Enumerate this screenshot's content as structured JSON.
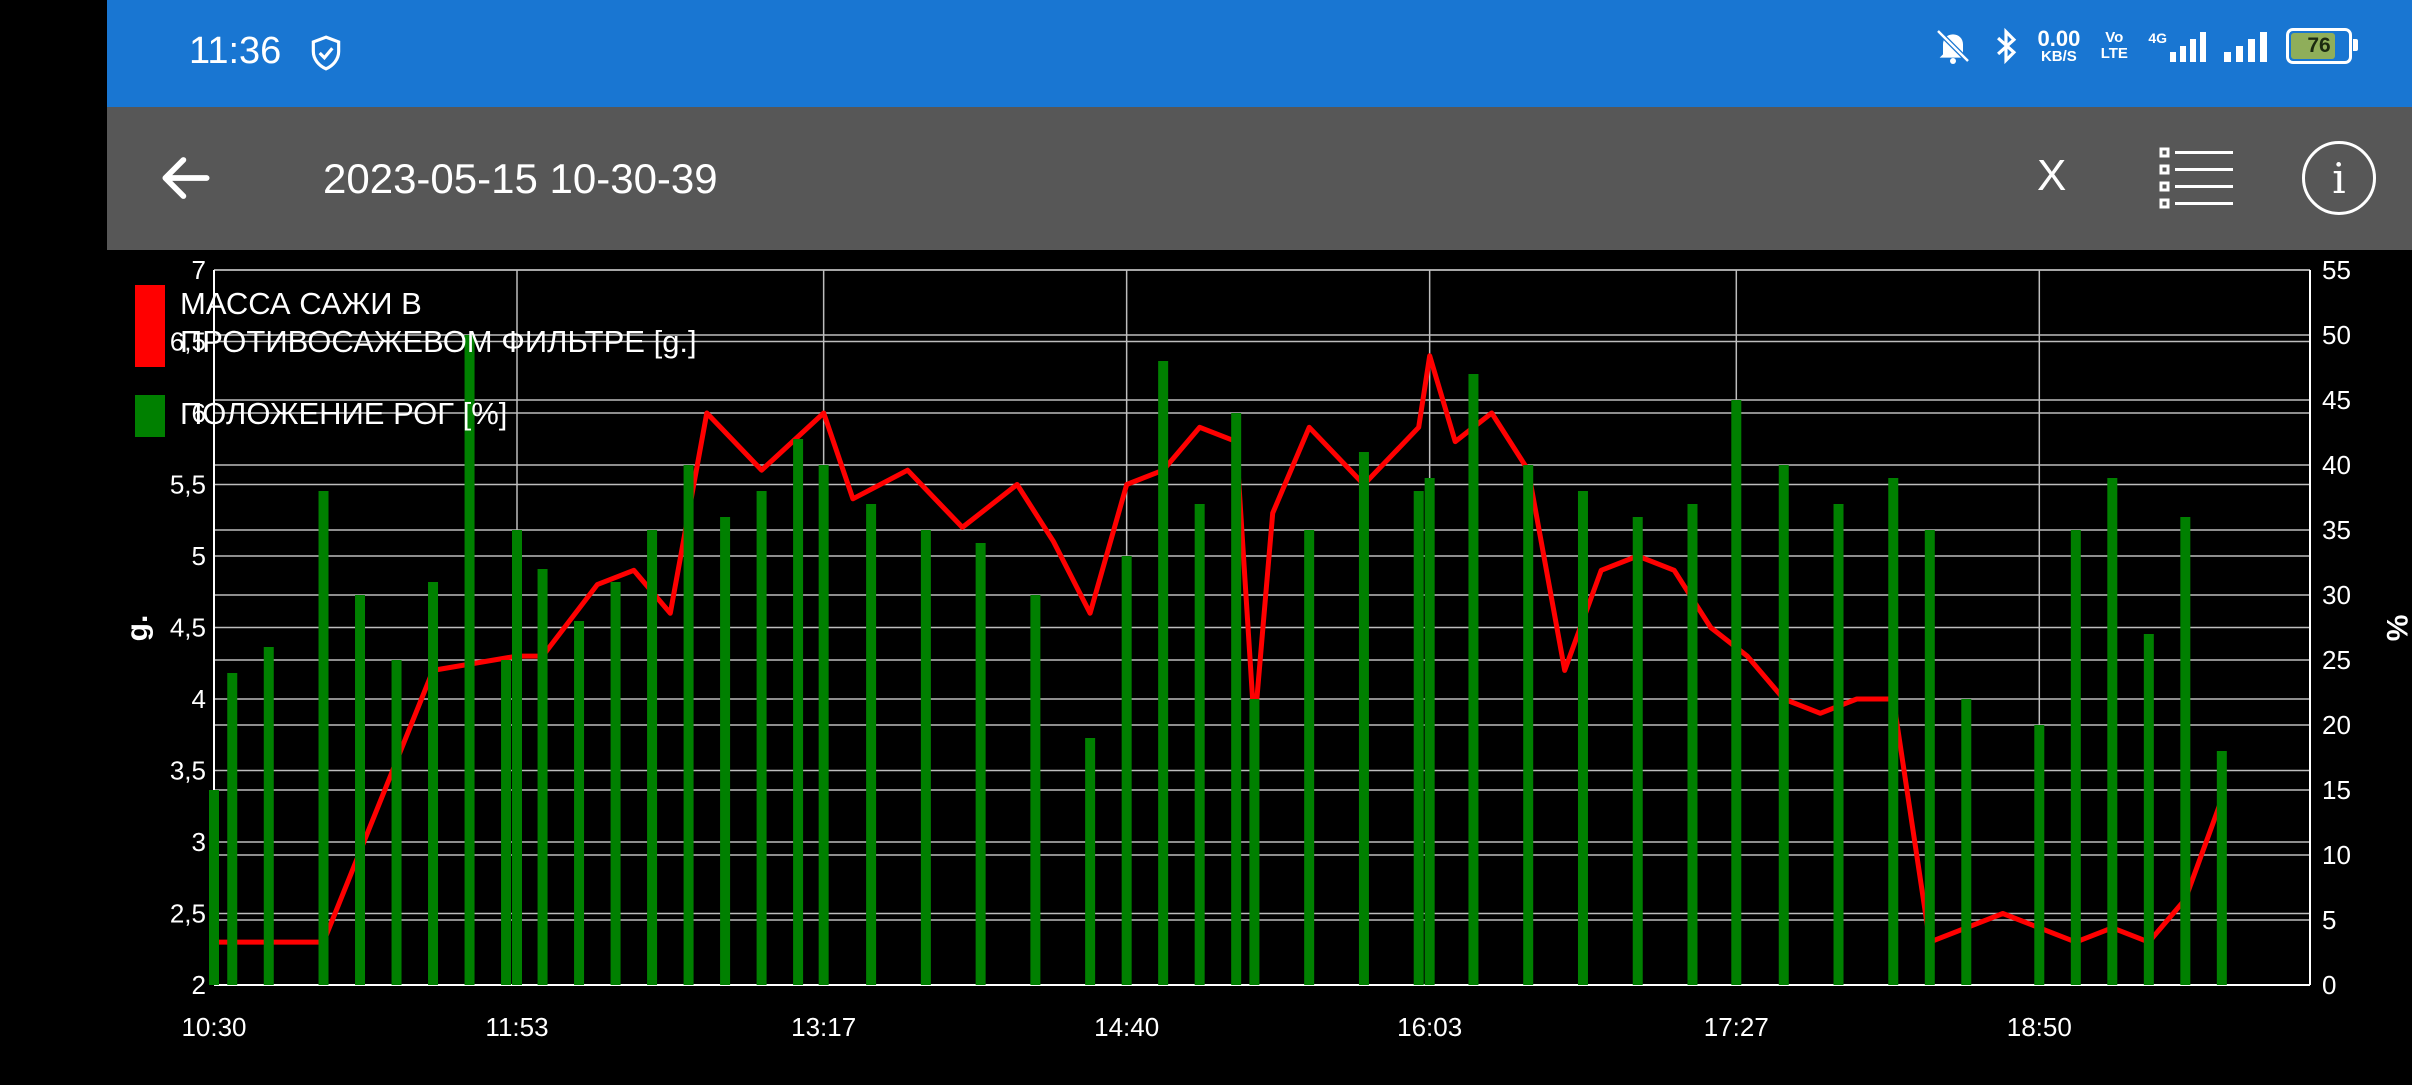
{
  "status": {
    "time": "11:36",
    "speed_value": "0.00",
    "speed_unit": "KB/S",
    "volte": "Vo LTE",
    "network": "4G",
    "battery": "76"
  },
  "toolbar": {
    "title": "2023-05-15 10-30-39",
    "close_label": "X"
  },
  "chart_data": {
    "type": "line",
    "xlabel": "",
    "x_ticks": [
      "10:30",
      "11:53",
      "13:17",
      "14:40",
      "16:03",
      "17:27",
      "18:50"
    ],
    "y_left_label": "g.",
    "y_left_range": [
      2,
      7
    ],
    "y_left_ticks": [
      "2",
      "2,5",
      "3",
      "3,5",
      "4",
      "4,5",
      "5",
      "5,5",
      "6",
      "6,5",
      "7"
    ],
    "y_right_label": "%",
    "y_right_range": [
      0,
      55
    ],
    "y_right_ticks": [
      "0",
      "5",
      "10",
      "15",
      "20",
      "25",
      "30",
      "35",
      "40",
      "45",
      "50",
      "55"
    ],
    "grid": true,
    "legend_position": "top-left",
    "series": [
      {
        "name": "МАССА САЖИ В ПРОТИВОСАЖЕВОМ ФИЛЬТРЕ [g.]",
        "color": "#ff0000",
        "axis": "left",
        "x": [
          "10:30",
          "10:40",
          "11:00",
          "11:30",
          "11:53",
          "12:00",
          "12:15",
          "12:25",
          "12:35",
          "12:45",
          "13:00",
          "13:17",
          "13:25",
          "13:40",
          "13:55",
          "14:10",
          "14:20",
          "14:30",
          "14:40",
          "14:50",
          "15:00",
          "15:10",
          "15:15",
          "15:20",
          "15:30",
          "15:45",
          "16:00",
          "16:03",
          "16:10",
          "16:20",
          "16:30",
          "16:40",
          "16:50",
          "17:00",
          "17:10",
          "17:20",
          "17:30",
          "17:40",
          "17:50",
          "18:00",
          "18:10",
          "18:20",
          "18:30",
          "18:40",
          "18:50",
          "19:00",
          "19:10",
          "19:20",
          "19:30",
          "19:40"
        ],
        "values": [
          2.3,
          2.3,
          2.3,
          4.2,
          4.3,
          4.3,
          4.8,
          4.9,
          4.6,
          6.0,
          5.6,
          6.0,
          5.4,
          5.6,
          5.2,
          5.5,
          5.1,
          4.6,
          5.5,
          5.6,
          5.9,
          5.8,
          3.8,
          5.3,
          5.9,
          5.5,
          5.9,
          6.4,
          5.8,
          6.0,
          5.6,
          4.2,
          4.9,
          5.0,
          4.9,
          4.5,
          4.3,
          4.0,
          3.9,
          4.0,
          4.0,
          2.3,
          2.4,
          2.5,
          2.4,
          2.3,
          2.4,
          2.3,
          2.6,
          3.3
        ]
      },
      {
        "name": "ПОЛОЖЕНИЕ РОГ [%]",
        "color": "#008000",
        "axis": "right",
        "x": [
          "10:30",
          "10:35",
          "10:45",
          "11:00",
          "11:10",
          "11:20",
          "11:30",
          "11:40",
          "11:50",
          "11:53",
          "12:00",
          "12:10",
          "12:20",
          "12:30",
          "12:40",
          "12:50",
          "13:00",
          "13:10",
          "13:17",
          "13:30",
          "13:45",
          "14:00",
          "14:15",
          "14:30",
          "14:40",
          "14:50",
          "15:00",
          "15:10",
          "15:15",
          "15:30",
          "15:45",
          "16:00",
          "16:03",
          "16:15",
          "16:30",
          "16:45",
          "17:00",
          "17:15",
          "17:27",
          "17:40",
          "17:55",
          "18:10",
          "18:20",
          "18:30",
          "18:40",
          "18:50",
          "19:00",
          "19:10",
          "19:20",
          "19:30",
          "19:40"
        ],
        "values": [
          15,
          24,
          26,
          38,
          30,
          25,
          31,
          50,
          25,
          35,
          32,
          28,
          31,
          35,
          40,
          36,
          38,
          42,
          40,
          37,
          35,
          34,
          30,
          19,
          33,
          48,
          37,
          44,
          22,
          35,
          41,
          38,
          39,
          47,
          40,
          38,
          36,
          37,
          45,
          40,
          37,
          39,
          35,
          22,
          0,
          20,
          35,
          39,
          27,
          36,
          18
        ]
      }
    ]
  }
}
